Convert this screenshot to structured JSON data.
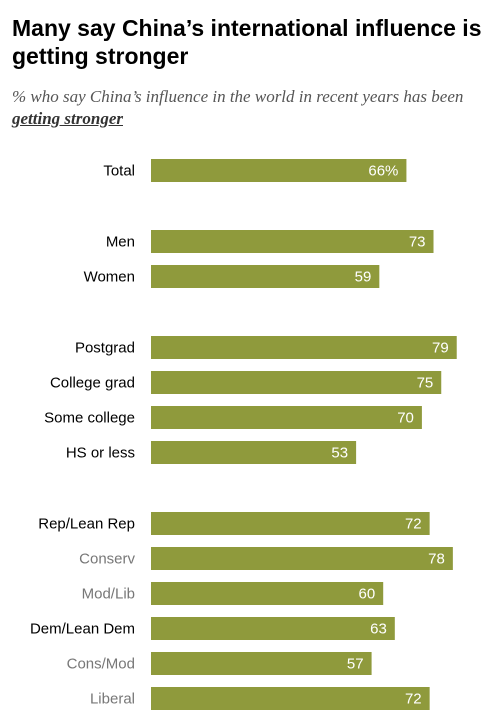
{
  "title": "Many say China’s international influence is getting stronger",
  "subtitle": {
    "prefix": "% who say China’s influence in the world in recent years has been ",
    "emphasis": "getting stronger"
  },
  "colors": {
    "bar": "#8f9a3c",
    "label_primary": "#000000",
    "label_secondary": "#777777",
    "value_text": "#ffffff"
  },
  "chart_data": {
    "type": "bar",
    "orientation": "horizontal",
    "xlim": [
      0,
      100
    ],
    "categories": [
      "Total",
      "Men",
      "Women",
      "Postgrad",
      "College grad",
      "Some college",
      "HS or less",
      "Rep/Lean Rep",
      "Conserv",
      "Mod/Lib",
      "Dem/Lean Dem",
      "Cons/Mod",
      "Liberal"
    ],
    "values": [
      66,
      73,
      59,
      79,
      75,
      70,
      53,
      72,
      78,
      60,
      63,
      57,
      72
    ],
    "value_labels": [
      "66%",
      "73",
      "59",
      "79",
      "75",
      "70",
      "53",
      "72",
      "78",
      "60",
      "63",
      "57",
      "72"
    ],
    "groups": [
      1,
      2,
      2,
      3,
      3,
      3,
      3,
      4,
      4,
      4,
      4,
      4,
      4
    ],
    "label_styles": [
      "primary",
      "primary",
      "primary",
      "primary",
      "primary",
      "primary",
      "primary",
      "primary",
      "secondary",
      "secondary",
      "primary",
      "secondary",
      "secondary"
    ]
  }
}
